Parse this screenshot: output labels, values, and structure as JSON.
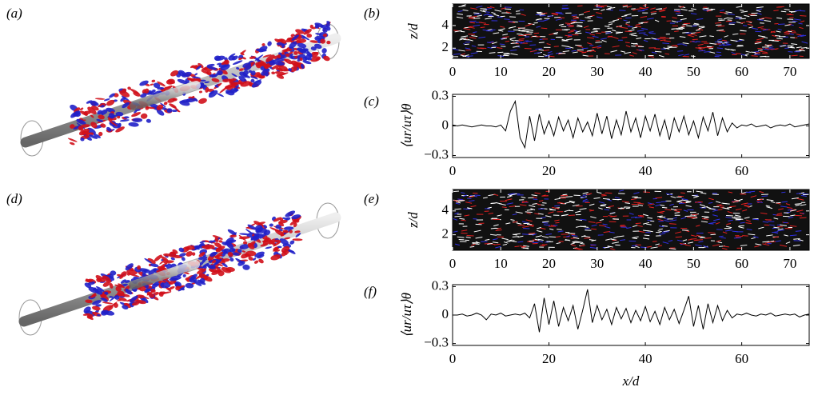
{
  "render_panels": [
    {
      "label": "(a)"
    },
    {
      "label": "(d)"
    }
  ],
  "chart_data": [
    {
      "type": "field",
      "label": "(b)",
      "ylabel": "z/d",
      "xlim": [
        0,
        74
      ],
      "ylim": [
        1.1,
        5.9
      ],
      "xticks": [
        0,
        10,
        20,
        30,
        40,
        50,
        60,
        70
      ],
      "yticks": [
        2,
        4
      ]
    },
    {
      "type": "line",
      "label": "(c)",
      "ylabel": "⟨ur/uτ⟩θ",
      "xlim": [
        0,
        74
      ],
      "ylim": [
        -0.32,
        0.32
      ],
      "xticks": [
        0,
        20,
        40,
        60
      ],
      "yticks": [
        {
          "value": -0.3,
          "label": "−0.3"
        },
        0,
        0.3
      ],
      "color": "#000000",
      "x": [
        0,
        1,
        2,
        3,
        4,
        5,
        6,
        7,
        8,
        9,
        10,
        11,
        12,
        13,
        14,
        15,
        16,
        17,
        18,
        19,
        20,
        21,
        22,
        23,
        24,
        25,
        26,
        27,
        28,
        29,
        30,
        31,
        32,
        33,
        34,
        35,
        36,
        37,
        38,
        39,
        40,
        41,
        42,
        43,
        44,
        45,
        46,
        47,
        48,
        49,
        50,
        51,
        52,
        53,
        54,
        55,
        56,
        57,
        58,
        59,
        60,
        61,
        62,
        63,
        64,
        65,
        66,
        67,
        68,
        69,
        70,
        71,
        72,
        73,
        74
      ],
      "values": [
        0.01,
        0.0,
        0.01,
        0.0,
        -0.01,
        0.0,
        0.01,
        0.0,
        0.0,
        -0.01,
        0.01,
        -0.05,
        0.15,
        0.25,
        -0.12,
        -0.22,
        0.1,
        -0.15,
        0.12,
        -0.08,
        0.05,
        -0.1,
        0.09,
        -0.05,
        0.06,
        -0.12,
        0.08,
        -0.06,
        0.04,
        -0.1,
        0.13,
        -0.08,
        0.1,
        -0.13,
        0.06,
        -0.09,
        0.15,
        -0.06,
        0.08,
        -0.12,
        0.1,
        -0.05,
        0.12,
        -0.1,
        0.06,
        -0.14,
        0.08,
        -0.06,
        0.1,
        -0.09,
        0.05,
        -0.12,
        0.09,
        -0.05,
        0.14,
        -0.1,
        0.08,
        -0.06,
        0.03,
        -0.02,
        0.01,
        0.0,
        0.02,
        -0.01,
        0.0,
        0.01,
        -0.02,
        0.0,
        0.01,
        0.0,
        0.02,
        -0.01,
        0.0,
        0.01,
        0.02
      ]
    },
    {
      "type": "field",
      "label": "(e)",
      "ylabel": "z/d",
      "xlim": [
        0,
        74
      ],
      "ylim": [
        0.7,
        5.8
      ],
      "xticks": [
        0,
        10,
        20,
        30,
        40,
        50,
        60,
        70
      ],
      "yticks": [
        2,
        4
      ]
    },
    {
      "type": "line",
      "label": "(f)",
      "ylabel": "⟨ur/uτ⟩θ",
      "xlabel": "x/d",
      "xlim": [
        0,
        74
      ],
      "ylim": [
        -0.32,
        0.32
      ],
      "xticks": [
        0,
        20,
        40,
        60
      ],
      "yticks": [
        {
          "value": -0.3,
          "label": "−0.3"
        },
        0,
        0.3
      ],
      "color": "#000000",
      "x": [
        0,
        1,
        2,
        3,
        4,
        5,
        6,
        7,
        8,
        9,
        10,
        11,
        12,
        13,
        14,
        15,
        16,
        17,
        18,
        19,
        20,
        21,
        22,
        23,
        24,
        25,
        26,
        27,
        28,
        29,
        30,
        31,
        32,
        33,
        34,
        35,
        36,
        37,
        38,
        39,
        40,
        41,
        42,
        43,
        44,
        45,
        46,
        47,
        48,
        49,
        50,
        51,
        52,
        53,
        54,
        55,
        56,
        57,
        58,
        59,
        60,
        61,
        62,
        63,
        64,
        65,
        66,
        67,
        68,
        69,
        70,
        71,
        72,
        73,
        74
      ],
      "values": [
        0.0,
        0.0,
        0.01,
        -0.01,
        0.0,
        0.02,
        0.0,
        -0.05,
        0.01,
        0.0,
        0.02,
        -0.01,
        0.0,
        0.01,
        0.0,
        0.02,
        -0.03,
        0.12,
        -0.18,
        0.18,
        -0.1,
        0.15,
        -0.12,
        0.08,
        -0.06,
        0.1,
        -0.15,
        0.05,
        0.27,
        -0.08,
        0.1,
        -0.05,
        0.06,
        -0.1,
        0.08,
        -0.04,
        0.07,
        -0.08,
        0.05,
        -0.06,
        0.09,
        -0.07,
        0.04,
        -0.1,
        0.08,
        -0.05,
        0.06,
        -0.09,
        0.05,
        0.2,
        -0.12,
        0.1,
        -0.15,
        0.12,
        -0.08,
        0.1,
        -0.06,
        0.05,
        -0.03,
        0.01,
        0.0,
        0.02,
        0.0,
        -0.01,
        0.01,
        0.0,
        0.02,
        -0.01,
        0.0,
        0.01,
        0.0,
        0.01,
        -0.02,
        0.0,
        0.01
      ]
    }
  ]
}
